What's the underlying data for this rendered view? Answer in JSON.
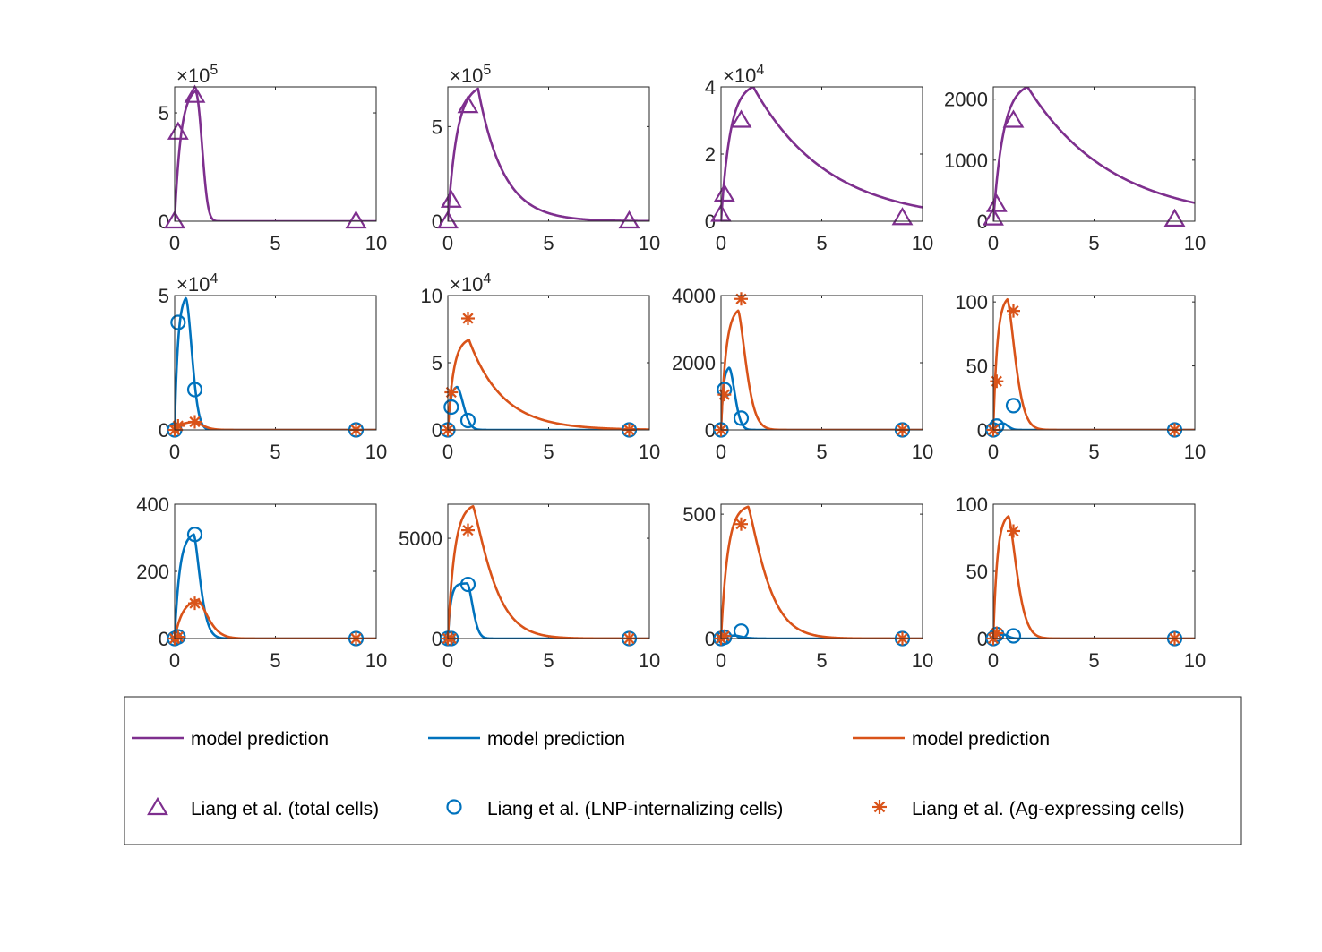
{
  "chart_data": [
    {
      "type": "line",
      "xlim": [
        0,
        10
      ],
      "ylim": [
        0,
        620000
      ],
      "yticks": [
        0,
        5
      ],
      "exponent": "5",
      "xticks": [
        0,
        5,
        10
      ],
      "series": [
        {
          "kind": "model",
          "color": "#7E2F8E",
          "curve": {
            "A": 1.015,
            "P": 600000,
            "k1": 3.2,
            "k2": 2.2,
            "n": 2.2
          }
        },
        {
          "kind": "data",
          "color": "#7E2F8E",
          "marker": "triangle",
          "x": [
            0,
            0.17,
            1,
            9
          ],
          "y": [
            0,
            410000,
            580000,
            0
          ]
        }
      ]
    },
    {
      "type": "line",
      "xlim": [
        0,
        10
      ],
      "ylim": [
        0,
        710000
      ],
      "yticks": [
        0,
        5
      ],
      "exponent": "5",
      "xticks": [
        0,
        5,
        10
      ],
      "series": [
        {
          "kind": "model",
          "color": "#7E2F8E",
          "curve": {
            "A": 1.5,
            "P": 700000,
            "k1": 2.2,
            "k2": 0.8,
            "n": 1
          }
        },
        {
          "kind": "data",
          "color": "#7E2F8E",
          "marker": "triangle",
          "x": [
            0,
            0.17,
            1,
            9
          ],
          "y": [
            0,
            110000,
            610000,
            0
          ]
        }
      ]
    },
    {
      "type": "line",
      "xlim": [
        0,
        10
      ],
      "ylim": [
        0,
        40000
      ],
      "yticks": [
        0,
        2,
        4
      ],
      "exponent": "4",
      "xticks": [
        0,
        5,
        10
      ],
      "series": [
        {
          "kind": "model",
          "color": "#7E2F8E",
          "curve": {
            "A": 1.6,
            "P": 40000,
            "k1": 2.2,
            "k2": 0.27,
            "n": 1
          }
        },
        {
          "kind": "data",
          "color": "#7E2F8E",
          "marker": "triangle",
          "x": [
            0,
            0.17,
            1,
            9
          ],
          "y": [
            2000,
            8000,
            30000,
            1000
          ]
        }
      ]
    },
    {
      "type": "line",
      "xlim": [
        0,
        10
      ],
      "ylim": [
        0,
        2200
      ],
      "yticks": [
        0,
        1000,
        2000
      ],
      "exponent": "",
      "xticks": [
        0,
        5,
        10
      ],
      "series": [
        {
          "kind": "model",
          "color": "#7E2F8E",
          "curve": {
            "A": 1.7,
            "P": 2200,
            "k1": 2.0,
            "k2": 0.24,
            "n": 1
          }
        },
        {
          "kind": "data",
          "color": "#7E2F8E",
          "marker": "triangle",
          "x": [
            0,
            0.17,
            1,
            9
          ],
          "y": [
            50,
            270,
            1650,
            30
          ]
        }
      ]
    },
    {
      "type": "line",
      "xlim": [
        0,
        10
      ],
      "ylim": [
        0,
        50000
      ],
      "yticks": [
        0,
        5
      ],
      "exponent": "4",
      "xticks": [
        0,
        5,
        10
      ],
      "series": [
        {
          "kind": "model",
          "color": "#0072BD",
          "curve": {
            "A": 0.55,
            "P": 49000,
            "k1": 6,
            "k2": 2.3,
            "n": 1.8
          }
        },
        {
          "kind": "model",
          "color": "#D95319",
          "curve": {
            "A": 1.0,
            "P": 3000,
            "k1": 3,
            "k2": 1.8,
            "n": 1.5
          }
        },
        {
          "kind": "data",
          "color": "#0072BD",
          "marker": "circle",
          "x": [
            0,
            0.17,
            1,
            9
          ],
          "y": [
            0,
            40000,
            15000,
            0
          ]
        },
        {
          "kind": "data",
          "color": "#D95319",
          "marker": "star",
          "x": [
            0,
            0.17,
            1,
            9
          ],
          "y": [
            0,
            1500,
            3000,
            0
          ]
        }
      ]
    },
    {
      "type": "line",
      "xlim": [
        0,
        10
      ],
      "ylim": [
        0,
        100000
      ],
      "yticks": [
        0,
        5,
        10
      ],
      "exponent": "4",
      "xticks": [
        0,
        5,
        10
      ],
      "series": [
        {
          "kind": "model",
          "color": "#0072BD",
          "curve": {
            "A": 0.45,
            "P": 32000,
            "k1": 8,
            "k2": 2.2,
            "n": 1.8
          }
        },
        {
          "kind": "model",
          "color": "#D95319",
          "curve": {
            "A": 1.05,
            "P": 67000,
            "k1": 3.5,
            "k2": 0.6,
            "n": 1
          }
        },
        {
          "kind": "data",
          "color": "#0072BD",
          "marker": "circle",
          "x": [
            0,
            0.17,
            1,
            9
          ],
          "y": [
            0,
            17000,
            7000,
            0
          ]
        },
        {
          "kind": "data",
          "color": "#D95319",
          "marker": "star",
          "x": [
            0,
            0.17,
            1,
            9
          ],
          "y": [
            0,
            28000,
            83000,
            0
          ]
        }
      ]
    },
    {
      "type": "line",
      "xlim": [
        0,
        10
      ],
      "ylim": [
        0,
        4000
      ],
      "yticks": [
        0,
        2000,
        4000
      ],
      "exponent": "",
      "xticks": [
        0,
        5,
        10
      ],
      "series": [
        {
          "kind": "model",
          "color": "#0072BD",
          "curve": {
            "A": 0.4,
            "P": 1850,
            "k1": 9,
            "k2": 2.5,
            "n": 1.8
          }
        },
        {
          "kind": "model",
          "color": "#D95319",
          "curve": {
            "A": 0.85,
            "P": 3550,
            "k1": 4,
            "k2": 1.8,
            "n": 1.5
          }
        },
        {
          "kind": "data",
          "color": "#0072BD",
          "marker": "circle",
          "x": [
            0,
            0.17,
            1,
            9
          ],
          "y": [
            0,
            1200,
            350,
            0
          ]
        },
        {
          "kind": "data",
          "color": "#D95319",
          "marker": "star",
          "x": [
            0,
            0.17,
            1,
            9
          ],
          "y": [
            0,
            1050,
            3900,
            0
          ]
        }
      ]
    },
    {
      "type": "line",
      "xlim": [
        0,
        10
      ],
      "ylim": [
        0,
        105
      ],
      "yticks": [
        0,
        50,
        100
      ],
      "exponent": "",
      "xticks": [
        0,
        5,
        10
      ],
      "series": [
        {
          "kind": "model",
          "color": "#0072BD",
          "curve": {
            "A": 0.5,
            "P": 5,
            "k1": 6,
            "k2": 3,
            "n": 1.8
          }
        },
        {
          "kind": "model",
          "color": "#D95319",
          "curve": {
            "A": 0.7,
            "P": 102,
            "k1": 5,
            "k2": 1.8,
            "n": 1.5
          }
        },
        {
          "kind": "data",
          "color": "#0072BD",
          "marker": "circle",
          "x": [
            0,
            0.17,
            1,
            9
          ],
          "y": [
            0,
            3,
            19,
            0
          ]
        },
        {
          "kind": "data",
          "color": "#D95319",
          "marker": "star",
          "x": [
            0,
            0.17,
            1,
            9
          ],
          "y": [
            0,
            38,
            93,
            0
          ]
        }
      ]
    },
    {
      "type": "line",
      "xlim": [
        0,
        10
      ],
      "ylim": [
        0,
        400
      ],
      "yticks": [
        0,
        200,
        400
      ],
      "exponent": "",
      "xticks": [
        0,
        5,
        10
      ],
      "series": [
        {
          "kind": "model",
          "color": "#0072BD",
          "curve": {
            "A": 0.95,
            "P": 310,
            "k1": 4,
            "k2": 2.2,
            "n": 1.5
          }
        },
        {
          "kind": "model",
          "color": "#D95319",
          "curve": {
            "A": 1.15,
            "P": 115,
            "k1": 2.5,
            "k2": 1.4,
            "n": 1.5
          }
        },
        {
          "kind": "data",
          "color": "#0072BD",
          "marker": "circle",
          "x": [
            0,
            0.17,
            1,
            9
          ],
          "y": [
            0,
            5,
            310,
            0
          ]
        },
        {
          "kind": "data",
          "color": "#D95319",
          "marker": "star",
          "x": [
            0,
            0.17,
            1,
            9
          ],
          "y": [
            0,
            5,
            105,
            0
          ]
        }
      ]
    },
    {
      "type": "line",
      "xlim": [
        0,
        10
      ],
      "ylim": [
        0,
        6700
      ],
      "yticks": [
        0,
        5000
      ],
      "exponent": "",
      "xticks": [
        0,
        5,
        10
      ],
      "series": [
        {
          "kind": "model",
          "color": "#0072BD",
          "curve": {
            "A": 0.95,
            "P": 2750,
            "k1": 7,
            "k2": 2.5,
            "n": 1.8
          }
        },
        {
          "kind": "model",
          "color": "#D95319",
          "curve": {
            "A": 1.25,
            "P": 6600,
            "k1": 3,
            "k2": 0.85,
            "n": 1.2
          }
        },
        {
          "kind": "data",
          "color": "#0072BD",
          "marker": "circle",
          "x": [
            0,
            0.17,
            1,
            9
          ],
          "y": [
            0,
            0,
            2700,
            0
          ]
        },
        {
          "kind": "data",
          "color": "#D95319",
          "marker": "star",
          "x": [
            0,
            0.17,
            1,
            9
          ],
          "y": [
            0,
            0,
            5400,
            0
          ]
        }
      ]
    },
    {
      "type": "line",
      "xlim": [
        0,
        10
      ],
      "ylim": [
        0,
        540
      ],
      "yticks": [
        0,
        500
      ],
      "exponent": "",
      "xticks": [
        0,
        5,
        10
      ],
      "series": [
        {
          "kind": "model",
          "color": "#0072BD",
          "curve": {
            "A": 0.7,
            "P": 12,
            "k1": 5,
            "k2": 2,
            "n": 1.5
          }
        },
        {
          "kind": "model",
          "color": "#D95319",
          "curve": {
            "A": 1.35,
            "P": 530,
            "k1": 3,
            "k2": 0.9,
            "n": 1.2
          }
        },
        {
          "kind": "data",
          "color": "#0072BD",
          "marker": "circle",
          "x": [
            0,
            0.17,
            1,
            9
          ],
          "y": [
            0,
            5,
            30,
            0
          ]
        },
        {
          "kind": "data",
          "color": "#D95319",
          "marker": "star",
          "x": [
            0,
            0.17,
            1,
            9
          ],
          "y": [
            0,
            10,
            460,
            0
          ]
        }
      ]
    },
    {
      "type": "line",
      "xlim": [
        0,
        10
      ],
      "ylim": [
        0,
        100
      ],
      "yticks": [
        0,
        50,
        100
      ],
      "exponent": "",
      "xticks": [
        0,
        5,
        10
      ],
      "series": [
        {
          "kind": "model",
          "color": "#0072BD",
          "curve": {
            "A": 0.5,
            "P": 3,
            "k1": 6,
            "k2": 3,
            "n": 1.8
          }
        },
        {
          "kind": "model",
          "color": "#D95319",
          "curve": {
            "A": 0.75,
            "P": 91,
            "k1": 5,
            "k2": 1.7,
            "n": 1.5
          }
        },
        {
          "kind": "data",
          "color": "#0072BD",
          "marker": "circle",
          "x": [
            0,
            0.17,
            1,
            9
          ],
          "y": [
            0,
            3,
            2,
            0
          ]
        },
        {
          "kind": "data",
          "color": "#D95319",
          "marker": "star",
          "x": [
            0,
            0.17,
            1,
            9
          ],
          "y": [
            0,
            4,
            80,
            0
          ]
        }
      ]
    }
  ],
  "legend": {
    "entries": [
      {
        "label": "model prediction",
        "color": "#7E2F8E",
        "symbol": "line"
      },
      {
        "label": "model prediction",
        "color": "#0072BD",
        "symbol": "line"
      },
      {
        "label": "model prediction",
        "color": "#D95319",
        "symbol": "line"
      },
      {
        "label": "Liang et al. (total cells)",
        "color": "#7E2F8E",
        "symbol": "triangle"
      },
      {
        "label": "Liang et al. (LNP-internalizing cells)",
        "color": "#0072BD",
        "symbol": "circle"
      },
      {
        "label": "Liang et al. (Ag-expressing cells)",
        "color": "#D95319",
        "symbol": "star"
      }
    ]
  }
}
